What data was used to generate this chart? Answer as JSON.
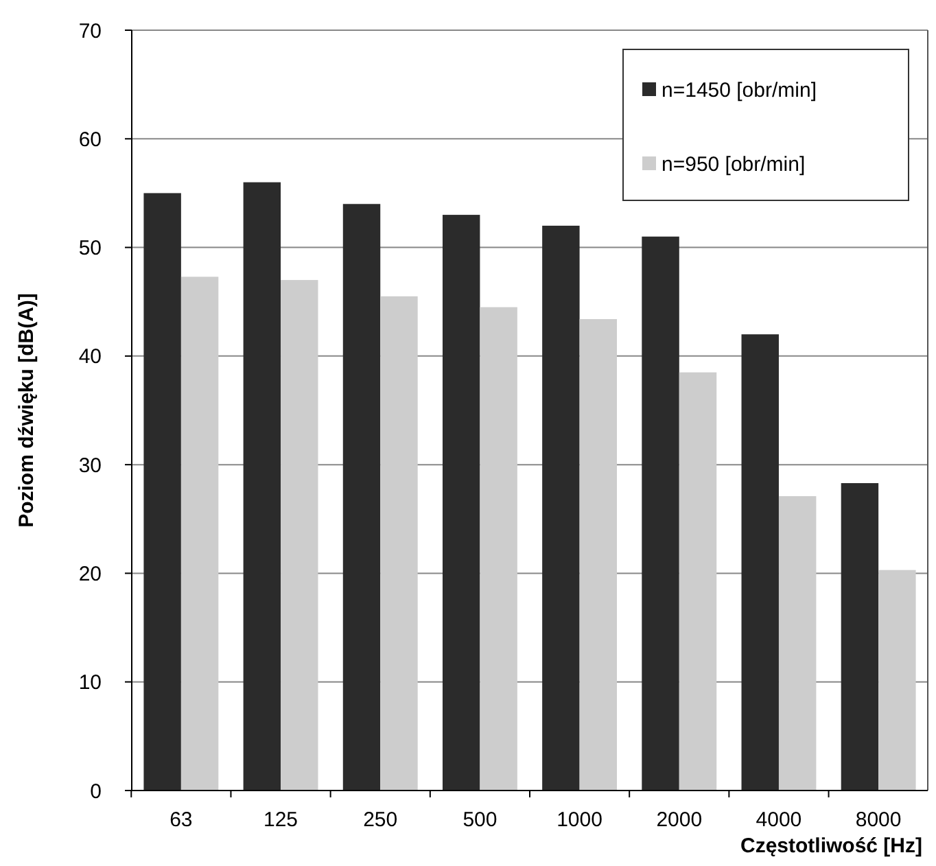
{
  "chart_data": {
    "type": "bar",
    "xlabel": "Częstotliwość [Hz]",
    "ylabel": "Poziom dźwięku [dB(A)]",
    "categories": [
      "63",
      "125",
      "250",
      "500",
      "1000",
      "2000",
      "4000",
      "8000"
    ],
    "series": [
      {
        "name": "n=1450 [obr/min]",
        "color": "#2b2b2b",
        "values": [
          55,
          56,
          54,
          53,
          52,
          51,
          42,
          28.3
        ]
      },
      {
        "name": "n=950 [obr/min]",
        "color": "#cdcdcd",
        "values": [
          47.3,
          47,
          45.5,
          44.5,
          43.4,
          38.5,
          27.1,
          20.3
        ]
      }
    ],
    "ylim": [
      0,
      70
    ],
    "yticks": [
      0,
      10,
      20,
      30,
      40,
      50,
      60,
      70
    ],
    "grid": "y",
    "legend": "top right"
  }
}
